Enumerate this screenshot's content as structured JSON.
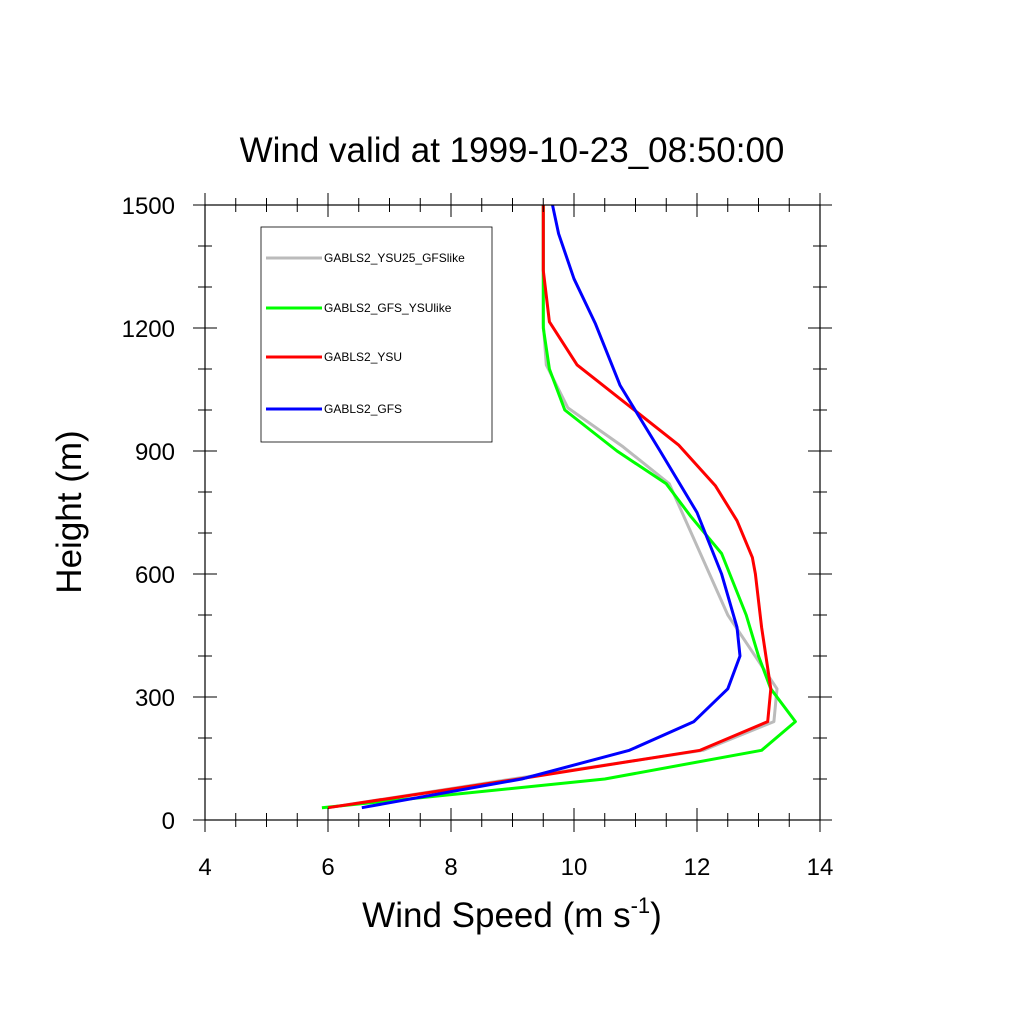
{
  "chart_data": {
    "type": "line",
    "title": "Wind valid at 1999-10-23_08:50:00",
    "xlabel": "Wind Speed (m s",
    "xlabel_sup": "-1",
    "xlabel_close": ")",
    "ylabel": "Height (m)",
    "xlim": [
      4,
      14
    ],
    "ylim": [
      0,
      1500
    ],
    "xticks": [
      4,
      6,
      8,
      10,
      12,
      14
    ],
    "yticks": [
      0,
      300,
      600,
      900,
      1200,
      1500
    ],
    "grid": false,
    "legend_position": "top-left",
    "series": [
      {
        "name": "GABLS2_YSU25_GFSlike",
        "color": "#bbbbbb",
        "x": [
          6.0,
          9.0,
          12.1,
          13.25,
          13.3,
          12.5,
          11.55,
          10.8,
          9.9,
          9.55,
          9.5,
          9.5,
          9.5
        ],
        "y": [
          30,
          100,
          170,
          240,
          320,
          500,
          820,
          910,
          1005,
          1110,
          1210,
          1340,
          1500
        ]
      },
      {
        "name": "GABLS2_GFS_YSUlike",
        "color": "#00ff00",
        "x": [
          5.9,
          10.5,
          13.05,
          13.6,
          13.2,
          13.0,
          12.8,
          12.4,
          11.9,
          11.5,
          10.7,
          9.85,
          9.6,
          9.5,
          9.5,
          9.5,
          9.5
        ],
        "y": [
          30,
          100,
          170,
          240,
          320,
          400,
          500,
          650,
          740,
          820,
          900,
          1000,
          1100,
          1200,
          1300,
          1400,
          1500
        ]
      },
      {
        "name": "GABLS2_YSU",
        "color": "#ff0000",
        "x": [
          6.0,
          9.1,
          12.05,
          13.15,
          13.2,
          13.05,
          12.95,
          12.9,
          12.65,
          12.3,
          11.7,
          10.05,
          9.6,
          9.5,
          9.5
        ],
        "y": [
          30,
          100,
          170,
          240,
          320,
          470,
          600,
          640,
          730,
          815,
          915,
          1110,
          1215,
          1340,
          1500
        ]
      },
      {
        "name": "GABLS2_GFS",
        "color": "#0000ff",
        "x": [
          6.55,
          9.15,
          10.9,
          11.95,
          12.5,
          12.7,
          12.65,
          12.4,
          12.0,
          11.4,
          10.75,
          10.35,
          10.0,
          9.75,
          9.65
        ],
        "y": [
          30,
          100,
          170,
          240,
          320,
          400,
          470,
          600,
          750,
          900,
          1060,
          1210,
          1320,
          1430,
          1500
        ]
      }
    ]
  }
}
